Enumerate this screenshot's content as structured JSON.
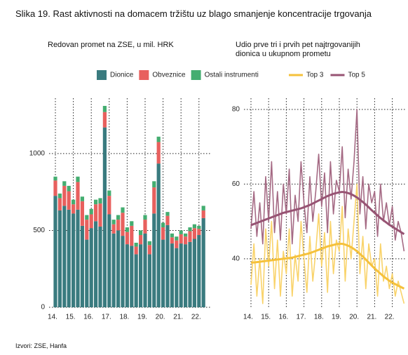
{
  "title": "Slika 19. Rast aktivnosti na domacem tržištu uz blago smanjenje koncentracije trgovanja",
  "source": "Izvori: ZSE, Hanfa",
  "chart_data": [
    {
      "type": "stacked_bar",
      "subtitle": "Redovan promet na ZSE, u mil. HRK",
      "categories": [
        "14.",
        null,
        null,
        null,
        "15.",
        null,
        null,
        null,
        "16.",
        null,
        null,
        null,
        "17.",
        null,
        null,
        null,
        "18.",
        null,
        null,
        null,
        "19.",
        null,
        null,
        null,
        "20.",
        null,
        null,
        null,
        "21.",
        null,
        null,
        null,
        "22.",
        null
      ],
      "series": [
        {
          "name": "Dionice",
          "color": "#3a7b7f",
          "values": [
            725,
            630,
            660,
            635,
            610,
            635,
            530,
            440,
            515,
            560,
            525,
            1170,
            605,
            480,
            500,
            465,
            410,
            400,
            345,
            410,
            480,
            345,
            610,
            935,
            440,
            535,
            415,
            385,
            415,
            410,
            425,
            445,
            470,
            580
          ]
        },
        {
          "name": "Obveznice",
          "color": "#e8605e",
          "values": [
            100,
            80,
            130,
            120,
            60,
            180,
            160,
            130,
            90,
            110,
            150,
            100,
            120,
            60,
            70,
            150,
            80,
            130,
            50,
            60,
            90,
            60,
            170,
            140,
            80,
            60,
            40,
            50,
            60,
            50,
            70,
            70,
            40,
            50
          ]
        },
        {
          "name": "Ostali instrumenti",
          "color": "#44ad70",
          "values": [
            25,
            30,
            30,
            35,
            30,
            35,
            30,
            30,
            35,
            30,
            35,
            40,
            35,
            30,
            30,
            35,
            30,
            30,
            25,
            30,
            30,
            25,
            40,
            35,
            30,
            25,
            25,
            25,
            25,
            20,
            25,
            25,
            20,
            30
          ]
        }
      ],
      "ylim": [
        0,
        1360
      ],
      "yticks": [
        0,
        500,
        1000
      ],
      "grid": true
    },
    {
      "type": "line",
      "subtitle": "Udio prve tri i prvih pet najtrgovanijih dionica u ukupnom prometu",
      "categories": [
        "14.",
        null,
        null,
        null,
        null,
        null,
        "15.",
        null,
        null,
        null,
        null,
        null,
        "16.",
        null,
        null,
        null,
        null,
        null,
        "17.",
        null,
        null,
        null,
        null,
        null,
        "18.",
        null,
        null,
        null,
        null,
        null,
        "19.",
        null,
        null,
        null,
        null,
        null,
        "20.",
        null,
        null,
        null,
        null,
        null,
        "21.",
        null,
        null,
        null,
        null,
        null,
        "22.",
        null,
        null,
        null,
        null
      ],
      "series": [
        {
          "name": "Top 3",
          "color": "#f9d36a",
          "values": [
            33,
            44,
            30,
            40,
            28,
            48,
            38,
            50,
            32,
            45,
            30,
            42,
            36,
            48,
            30,
            41,
            34,
            50,
            40,
            31,
            46,
            34,
            42,
            52,
            38,
            47,
            31,
            50,
            36,
            45,
            42,
            54,
            34,
            48,
            40,
            50,
            60,
            36,
            46,
            32,
            44,
            38,
            40,
            30,
            44,
            34,
            38,
            32,
            36,
            30,
            34,
            31,
            28
          ]
        },
        {
          "name": "Top 5",
          "color": "#a56a84",
          "values": [
            48,
            58,
            46,
            55,
            44,
            62,
            50,
            66,
            47,
            58,
            45,
            60,
            52,
            64,
            44,
            57,
            50,
            66,
            55,
            47,
            62,
            50,
            58,
            68,
            54,
            63,
            47,
            66,
            52,
            61,
            58,
            70,
            51,
            64,
            56,
            66,
            80,
            52,
            62,
            48,
            60,
            55,
            58,
            46,
            60,
            50,
            55,
            49,
            54,
            45,
            50,
            47,
            42
          ]
        },
        {
          "color": "#f5c13b",
          "values": [
            39,
            39,
            39.1,
            39.2,
            39.3,
            39.4,
            39.5,
            39.6,
            39.7,
            39.8,
            39.9,
            40,
            40.1,
            40.2,
            40.3,
            40.5,
            40.7,
            40.9,
            41.1,
            41.3,
            41.5,
            41.8,
            42.1,
            42.4,
            42.7,
            43,
            43.3,
            43.5,
            43.7,
            43.9,
            44,
            44,
            43.8,
            43.5,
            43.1,
            42.6,
            42,
            41.3,
            40.6,
            39.8,
            39,
            38.2,
            37.4,
            36.7,
            36,
            35.3,
            34.7,
            34.1,
            33.6,
            33.2,
            32.8,
            32.4,
            32
          ]
        },
        {
          "color": "#975373",
          "values": [
            49,
            49.3,
            49.6,
            49.9,
            50.2,
            50.5,
            50.8,
            51.1,
            51.4,
            51.7,
            52,
            52.3,
            52.5,
            52.7,
            52.9,
            53.1,
            53.3,
            53.5,
            53.8,
            54.1,
            54.4,
            54.8,
            55.2,
            55.6,
            56,
            56.4,
            56.8,
            57.1,
            57.4,
            57.6,
            57.8,
            57.9,
            57.8,
            57.6,
            57.3,
            56.9,
            56.4,
            55.8,
            55.2,
            54.5,
            53.8,
            53,
            52.3,
            51.6,
            50.9,
            50.3,
            49.7,
            49.1,
            48.6,
            48.1,
            47.6,
            47.1,
            46.6
          ]
        }
      ],
      "ylim": [
        27,
        83
      ],
      "yticks": [
        40,
        60,
        80
      ],
      "grid": true
    }
  ]
}
